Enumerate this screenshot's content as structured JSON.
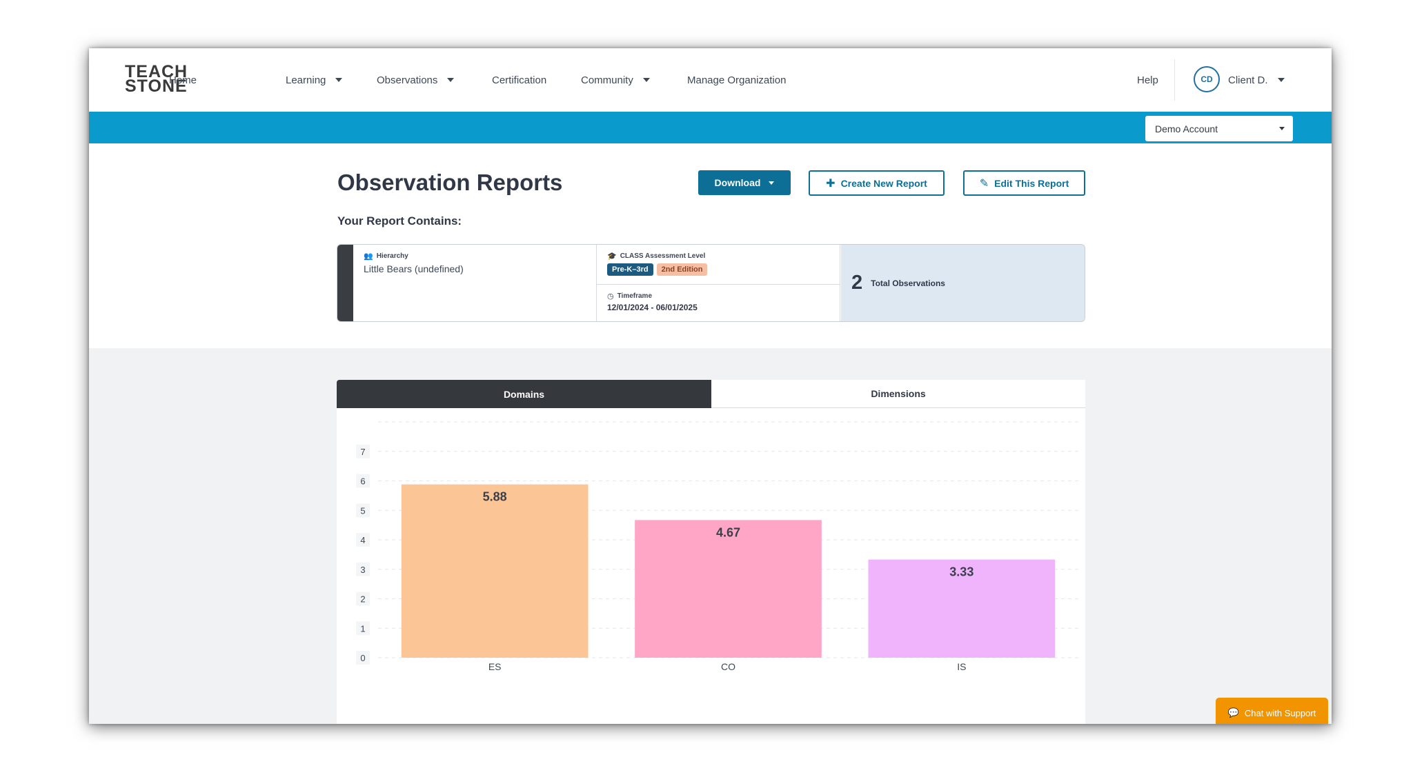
{
  "brand": {
    "logo_line1": "TEACH",
    "logo_line2": "STONE"
  },
  "nav": {
    "items": [
      {
        "label": "Home",
        "dropdown": false
      },
      {
        "label": "Learning",
        "dropdown": true
      },
      {
        "label": "Observations",
        "dropdown": true
      },
      {
        "label": "Certification",
        "dropdown": false
      },
      {
        "label": "Community",
        "dropdown": true
      },
      {
        "label": "Manage Organization",
        "dropdown": false
      }
    ],
    "help": "Help",
    "user_initials": "CD",
    "user_name": "Client D."
  },
  "account_select": {
    "value": "Demo Account"
  },
  "header": {
    "title": "Observation Reports",
    "download_label": "Download",
    "create_label": "Create New Report",
    "edit_label": "Edit This Report",
    "contains_label": "Your Report Contains:"
  },
  "summary": {
    "hierarchy_label": "Hierarchy",
    "hierarchy_value": "Little Bears (undefined)",
    "assessment_label": "CLASS Assessment Level",
    "assessment_tag": "Pre-K–3rd",
    "edition_tag": "2nd Edition",
    "timeframe_label": "Timeframe",
    "timeframe_value": "12/01/2024 - 06/01/2025",
    "total_count": "2",
    "total_label": "Total Observations"
  },
  "tabs": {
    "domains": "Domains",
    "dimensions": "Dimensions"
  },
  "chart_data": {
    "type": "bar",
    "categories": [
      "ES",
      "CO",
      "IS"
    ],
    "values": [
      5.88,
      4.67,
      3.33
    ],
    "value_labels": [
      "5.88",
      "4.67",
      "3.33"
    ],
    "colors": [
      "#fcc596",
      "#ffa6c7",
      "#efb4fb"
    ],
    "yticks": [
      0,
      1,
      2,
      3,
      4,
      5,
      6,
      7
    ],
    "ylim": [
      0,
      8
    ],
    "grid": true
  },
  "chat": {
    "label": "Chat with Support"
  },
  "colors": {
    "accent": "#0a9bcc",
    "primary_button": "#0d6e96",
    "chat": "#f29300"
  }
}
